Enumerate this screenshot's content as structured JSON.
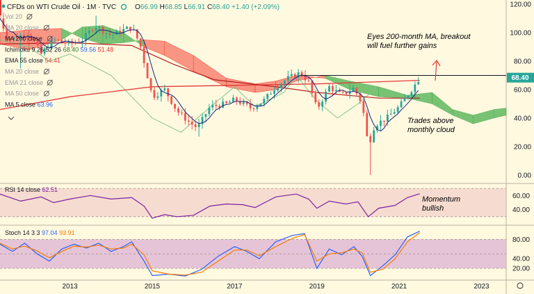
{
  "header": {
    "title": "CFDs on WTI Crude Oil · 1M · TVC",
    "ohlc": {
      "o_label": "O",
      "o": "66.99",
      "h_label": "H",
      "h": "68.85",
      "l_label": "L",
      "l": "66.91",
      "c_label": "C",
      "c": "68.40",
      "change": "+1.40 (+2.09%)"
    }
  },
  "indicators": [
    {
      "label": "Vol 20",
      "color": "#9a9a9a"
    },
    {
      "label": "MA 20 close",
      "color": "#9a9a9a"
    },
    {
      "label": "MA 200 close",
      "color": "#131722"
    },
    {
      "label": "Ichimoku 9 26 52 26",
      "color": "#131722",
      "v1": "68.40",
      "v1_color": "#2e7d32",
      "v2": "59.56",
      "v2_color": "#2962ff",
      "v3": "51.48",
      "v3_color": "#e53935"
    },
    {
      "label": "EMA 55 close",
      "color": "#131722",
      "v1": "54.41",
      "v1_color": "#e53935"
    },
    {
      "label": "MA 20 close",
      "color": "#9a9a9a"
    },
    {
      "label": "EMA 21 close",
      "color": "#9a9a9a"
    },
    {
      "label": "MA 50 close",
      "color": "#9a9a9a"
    },
    {
      "label": "MA 5 close",
      "color": "#131722",
      "v1": "63.96",
      "v1_color": "#2962ff"
    }
  ],
  "annotations": {
    "top": [
      "Eyes 200-month MA, breakout",
      "will fuel further gains"
    ],
    "cloud": [
      "Trades above",
      "monthly cloud"
    ],
    "rsi": [
      "Momentum",
      "bullish"
    ]
  },
  "last_price_tag": "68.40",
  "rsi_header": {
    "label": "RSI 14 close",
    "value": "62.51",
    "value_color": "#7b1fa2"
  },
  "stoch_header": {
    "label": "Stoch 14 3 3",
    "k": "97.04",
    "k_color": "#2962ff",
    "d": "93.91",
    "d_color": "#f57c00"
  },
  "chart_data": {
    "type": "candlestick",
    "x_range": [
      2011.3,
      2023.6
    ],
    "x_ticks": [
      {
        "x": 2013,
        "label": "2013"
      },
      {
        "x": 2015,
        "label": "2015"
      },
      {
        "x": 2017,
        "label": "2017"
      },
      {
        "x": 2019,
        "label": "2019"
      },
      {
        "x": 2021,
        "label": "2021"
      },
      {
        "x": 2023,
        "label": "2023"
      }
    ],
    "price": {
      "y_range": [
        -5,
        122
      ],
      "y_ticks": [
        "0.00",
        "20.00",
        "40.00",
        "60.00",
        "80.00",
        "100.00",
        "120.00"
      ],
      "ma200_close": [
        [
          2011.3,
          46
        ],
        [
          2013,
          55
        ],
        [
          2015,
          62
        ],
        [
          2017,
          63
        ],
        [
          2019,
          64
        ],
        [
          2021,
          66
        ],
        [
          2021.5,
          66.5
        ]
      ],
      "ema55_close": [
        [
          2011.3,
          92
        ],
        [
          2013,
          93
        ],
        [
          2014.5,
          91
        ],
        [
          2015.5,
          78
        ],
        [
          2016.5,
          67
        ],
        [
          2018,
          62
        ],
        [
          2019,
          58
        ],
        [
          2020.5,
          54
        ],
        [
          2021.5,
          54
        ]
      ],
      "ichimoku_lagging": [
        [
          2011.3,
          95
        ],
        [
          2012,
          90
        ],
        [
          2012.5,
          80
        ],
        [
          2013,
          85
        ],
        [
          2014,
          70
        ],
        [
          2014.5,
          55
        ],
        [
          2015,
          40
        ],
        [
          2015.7,
          30
        ],
        [
          2016.5,
          50
        ],
        [
          2017,
          62
        ],
        [
          2017.5,
          48
        ],
        [
          2018.2,
          58
        ],
        [
          2018.5,
          70
        ],
        [
          2019,
          52
        ],
        [
          2019.5,
          40
        ],
        [
          2020,
          50
        ],
        [
          2020.4,
          60
        ]
      ],
      "cloud_a": [
        [
          2011.3,
          92
        ],
        [
          2012,
          88
        ],
        [
          2012.8,
          95
        ],
        [
          2013.3,
          104
        ],
        [
          2013.8,
          105
        ],
        [
          2014.3,
          100
        ],
        [
          2014.8,
          90
        ],
        [
          2015.3,
          84
        ],
        [
          2016,
          73
        ],
        [
          2016.8,
          62
        ],
        [
          2017.5,
          58
        ],
        [
          2018,
          60
        ],
        [
          2018.5,
          66
        ],
        [
          2019.2,
          70
        ],
        [
          2019.8,
          66
        ],
        [
          2020.5,
          62
        ],
        [
          2021.2,
          56
        ],
        [
          2021.8,
          58
        ],
        [
          2022.3,
          46
        ],
        [
          2022.8,
          42
        ],
        [
          2023.3,
          46
        ],
        [
          2023.6,
          47
        ]
      ],
      "cloud_b": [
        [
          2011.3,
          100
        ],
        [
          2012,
          102
        ],
        [
          2012.8,
          103
        ],
        [
          2013.3,
          96
        ],
        [
          2013.8,
          92
        ],
        [
          2014.3,
          93
        ],
        [
          2014.8,
          95
        ],
        [
          2015.3,
          94
        ],
        [
          2016,
          84
        ],
        [
          2016.8,
          68
        ],
        [
          2017.5,
          64
        ],
        [
          2018,
          66
        ],
        [
          2018.5,
          70
        ],
        [
          2019.2,
          68
        ],
        [
          2019.8,
          60
        ],
        [
          2020.5,
          55
        ],
        [
          2021.2,
          54
        ],
        [
          2021.8,
          50
        ],
        [
          2022.3,
          42
        ],
        [
          2022.8,
          36
        ],
        [
          2023.3,
          40
        ],
        [
          2023.6,
          42
        ]
      ],
      "close_path": [
        [
          2011.3,
          110
        ],
        [
          2011.5,
          95
        ],
        [
          2012.0,
          100
        ],
        [
          2012.3,
          85
        ],
        [
          2012.6,
          95
        ],
        [
          2013.0,
          92
        ],
        [
          2013.3,
          95
        ],
        [
          2013.6,
          105
        ],
        [
          2014.0,
          98
        ],
        [
          2014.3,
          102
        ],
        [
          2014.5,
          104
        ],
        [
          2014.7,
          92
        ],
        [
          2015.0,
          55
        ],
        [
          2015.3,
          60
        ],
        [
          2015.6,
          45
        ],
        [
          2015.9,
          37
        ],
        [
          2016.1,
          33
        ],
        [
          2016.4,
          48
        ],
        [
          2016.8,
          50
        ],
        [
          2017.0,
          53
        ],
        [
          2017.4,
          47
        ],
        [
          2017.7,
          52
        ],
        [
          2018.0,
          62
        ],
        [
          2018.3,
          68
        ],
        [
          2018.6,
          72
        ],
        [
          2018.8,
          65
        ],
        [
          2019.0,
          46
        ],
        [
          2019.3,
          62
        ],
        [
          2019.6,
          56
        ],
        [
          2019.9,
          61
        ],
        [
          2020.1,
          50
        ],
        [
          2020.25,
          20
        ],
        [
          2020.4,
          35
        ],
        [
          2020.7,
          40
        ],
        [
          2021.0,
          48
        ],
        [
          2021.3,
          60
        ],
        [
          2021.5,
          68.4
        ]
      ],
      "extreme_points": [
        [
          2011.4,
          114
        ],
        [
          2011.8,
          75
        ],
        [
          2013.6,
          112
        ],
        [
          2016.1,
          27
        ],
        [
          2020.3,
          0
        ],
        [
          2021.5,
          68.85
        ]
      ]
    },
    "rsi": {
      "y_range": [
        20,
        75
      ],
      "y_ticks": [
        "40.00",
        "60.00"
      ],
      "band": [
        30,
        70
      ],
      "series": [
        [
          2011.3,
          62
        ],
        [
          2011.8,
          52
        ],
        [
          2012.3,
          58
        ],
        [
          2012.6,
          50
        ],
        [
          2013.0,
          55
        ],
        [
          2013.5,
          60
        ],
        [
          2014.0,
          55
        ],
        [
          2014.5,
          57
        ],
        [
          2014.8,
          45
        ],
        [
          2015.0,
          28
        ],
        [
          2015.3,
          33
        ],
        [
          2015.6,
          30
        ],
        [
          2016.0,
          32
        ],
        [
          2016.4,
          45
        ],
        [
          2016.8,
          48
        ],
        [
          2017.2,
          47
        ],
        [
          2017.5,
          43
        ],
        [
          2018.0,
          58
        ],
        [
          2018.5,
          62
        ],
        [
          2018.8,
          55
        ],
        [
          2019.0,
          42
        ],
        [
          2019.3,
          52
        ],
        [
          2019.7,
          48
        ],
        [
          2020.0,
          51
        ],
        [
          2020.25,
          30
        ],
        [
          2020.5,
          42
        ],
        [
          2020.9,
          46
        ],
        [
          2021.2,
          57
        ],
        [
          2021.5,
          62.5
        ]
      ]
    },
    "stoch": {
      "y_range": [
        0,
        105
      ],
      "y_ticks": [
        "20.00",
        "40.00",
        "80.00"
      ],
      "band": [
        20,
        80
      ],
      "k": [
        [
          2011.3,
          70
        ],
        [
          2011.6,
          55
        ],
        [
          2011.9,
          72
        ],
        [
          2012.2,
          50
        ],
        [
          2012.5,
          35
        ],
        [
          2012.8,
          60
        ],
        [
          2013.1,
          70
        ],
        [
          2013.4,
          62
        ],
        [
          2013.7,
          72
        ],
        [
          2014.0,
          55
        ],
        [
          2014.3,
          65
        ],
        [
          2014.5,
          75
        ],
        [
          2014.8,
          35
        ],
        [
          2015.0,
          5
        ],
        [
          2015.4,
          8
        ],
        [
          2015.8,
          4
        ],
        [
          2016.2,
          18
        ],
        [
          2016.6,
          45
        ],
        [
          2017.0,
          65
        ],
        [
          2017.3,
          55
        ],
        [
          2017.6,
          40
        ],
        [
          2018.0,
          75
        ],
        [
          2018.4,
          88
        ],
        [
          2018.7,
          92
        ],
        [
          2019.0,
          20
        ],
        [
          2019.3,
          60
        ],
        [
          2019.6,
          48
        ],
        [
          2019.9,
          65
        ],
        [
          2020.1,
          45
        ],
        [
          2020.3,
          5
        ],
        [
          2020.6,
          25
        ],
        [
          2020.9,
          48
        ],
        [
          2021.2,
          85
        ],
        [
          2021.5,
          97
        ]
      ],
      "d": [
        [
          2011.3,
          72
        ],
        [
          2011.6,
          60
        ],
        [
          2011.9,
          66
        ],
        [
          2012.2,
          56
        ],
        [
          2012.5,
          42
        ],
        [
          2012.8,
          55
        ],
        [
          2013.1,
          66
        ],
        [
          2013.4,
          64
        ],
        [
          2013.7,
          68
        ],
        [
          2014.0,
          60
        ],
        [
          2014.3,
          62
        ],
        [
          2014.5,
          70
        ],
        [
          2014.8,
          48
        ],
        [
          2015.0,
          15
        ],
        [
          2015.4,
          8
        ],
        [
          2015.8,
          6
        ],
        [
          2016.2,
          12
        ],
        [
          2016.6,
          35
        ],
        [
          2017.0,
          58
        ],
        [
          2017.3,
          58
        ],
        [
          2017.6,
          46
        ],
        [
          2018.0,
          65
        ],
        [
          2018.4,
          82
        ],
        [
          2018.7,
          90
        ],
        [
          2019.0,
          35
        ],
        [
          2019.3,
          50
        ],
        [
          2019.6,
          52
        ],
        [
          2019.9,
          60
        ],
        [
          2020.1,
          52
        ],
        [
          2020.3,
          12
        ],
        [
          2020.6,
          18
        ],
        [
          2020.9,
          40
        ],
        [
          2021.2,
          75
        ],
        [
          2021.5,
          94
        ]
      ]
    }
  }
}
